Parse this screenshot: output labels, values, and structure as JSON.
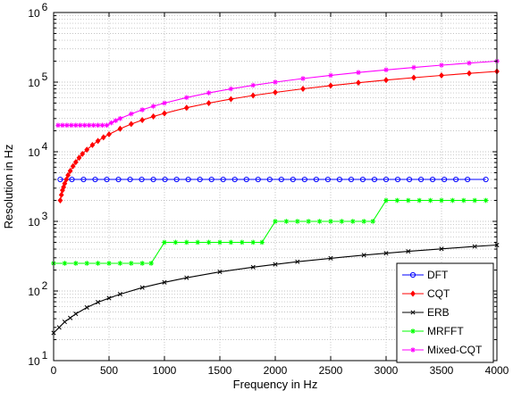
{
  "chart_data": {
    "type": "line",
    "xlabel": "Frequency in Hz",
    "ylabel": "Resolution in Hz",
    "xlim": [
      0,
      4000
    ],
    "ylim": [
      10,
      1000000
    ],
    "yscale": "log",
    "grid": true,
    "legend_position": "bottom-right",
    "x_ticks": [
      "0",
      "500",
      "1000",
      "1500",
      "2000",
      "2500",
      "3000",
      "3500",
      "4000"
    ],
    "y_ticks": [
      {
        "base": "10",
        "exp": "1"
      },
      {
        "base": "10",
        "exp": "2"
      },
      {
        "base": "10",
        "exp": "3"
      },
      {
        "base": "10",
        "exp": "4"
      },
      {
        "base": "10",
        "exp": "5"
      },
      {
        "base": "10",
        "exp": "6"
      }
    ],
    "series": [
      {
        "name": "DFT",
        "color": "#0000ff",
        "marker": "circle",
        "x": [
          60,
          165,
          270,
          375,
          480,
          585,
          690,
          795,
          900,
          1005,
          1110,
          1215,
          1320,
          1425,
          1530,
          1635,
          1740,
          1845,
          1950,
          2055,
          2160,
          2265,
          2370,
          2475,
          2580,
          2685,
          2790,
          2895,
          3000,
          3105,
          3210,
          3315,
          3420,
          3525,
          3630,
          3735,
          3900
        ],
        "y": [
          4000,
          4000,
          4000,
          4000,
          4000,
          4000,
          4000,
          4000,
          4000,
          4000,
          4000,
          4000,
          4000,
          4000,
          4000,
          4000,
          4000,
          4000,
          4000,
          4000,
          4000,
          4000,
          4000,
          4000,
          4000,
          4000,
          4000,
          4000,
          4000,
          4000,
          4000,
          4000,
          4000,
          4000,
          4000,
          4000,
          4000
        ]
      },
      {
        "name": "CQT",
        "color": "#ff0000",
        "marker": "diamond",
        "x": [
          60,
          70,
          80,
          90,
          100,
          115,
          130,
          150,
          175,
          200,
          230,
          260,
          300,
          350,
          400,
          450,
          500,
          600,
          700,
          800,
          900,
          1000,
          1200,
          1400,
          1600,
          1800,
          2000,
          2250,
          2500,
          2750,
          3000,
          3250,
          3500,
          3750,
          4000
        ],
        "y": [
          2000,
          2400,
          2800,
          3100,
          3500,
          4000,
          4600,
          5300,
          6200,
          7100,
          8200,
          9300,
          10700,
          12500,
          14300,
          16100,
          17800,
          21400,
          25000,
          28500,
          32100,
          35600,
          42800,
          49900,
          57000,
          64200,
          71300,
          80200,
          89100,
          98000,
          106900,
          115800,
          124700,
          133700,
          142600
        ]
      },
      {
        "name": "ERB",
        "color": "#000000",
        "marker": "x",
        "x": [
          0,
          50,
          100,
          150,
          200,
          300,
          400,
          500,
          600,
          800,
          1000,
          1200,
          1500,
          1800,
          2000,
          2200,
          2500,
          2800,
          3000,
          3200,
          3500,
          3800,
          4000
        ],
        "y": [
          25,
          30,
          36,
          41,
          47,
          58,
          69,
          79,
          90,
          112,
          133,
          155,
          188,
          220,
          241,
          263,
          295,
          328,
          349,
          371,
          403,
          436,
          457
        ]
      },
      {
        "name": "MRFFT",
        "color": "#00ff00",
        "marker": "star",
        "x": [
          0,
          100,
          200,
          300,
          400,
          500,
          600,
          700,
          800,
          880,
          1000,
          1100,
          1200,
          1300,
          1400,
          1500,
          1600,
          1700,
          1800,
          1880,
          2000,
          2100,
          2200,
          2300,
          2400,
          2500,
          2600,
          2700,
          2800,
          2880,
          3000,
          3100,
          3200,
          3300,
          3400,
          3500,
          3600,
          3700,
          3800,
          3900
        ],
        "y": [
          250,
          250,
          250,
          250,
          250,
          250,
          250,
          250,
          250,
          250,
          500,
          500,
          500,
          500,
          500,
          500,
          500,
          500,
          500,
          500,
          1000,
          1000,
          1000,
          1000,
          1000,
          1000,
          1000,
          1000,
          1000,
          1000,
          2000,
          2000,
          2000,
          2000,
          2000,
          2000,
          2000,
          2000,
          2000,
          2000
        ]
      },
      {
        "name": "Mixed-CQT",
        "color": "#ff00ff",
        "marker": "star",
        "x": [
          40,
          80,
          120,
          160,
          200,
          240,
          280,
          320,
          360,
          400,
          440,
          480,
          520,
          560,
          600,
          700,
          800,
          900,
          1000,
          1200,
          1400,
          1600,
          1800,
          2000,
          2250,
          2500,
          2750,
          3000,
          3250,
          3500,
          3750,
          4000
        ],
        "y": [
          24000,
          24000,
          24000,
          24000,
          24000,
          24000,
          24000,
          24000,
          24000,
          24000,
          24000,
          24000,
          26000,
          28000,
          30000,
          35000,
          40000,
          45000,
          50000,
          60000,
          70000,
          80000,
          90000,
          100000,
          112500,
          125000,
          137500,
          150000,
          162500,
          175000,
          187500,
          200000
        ]
      }
    ]
  }
}
